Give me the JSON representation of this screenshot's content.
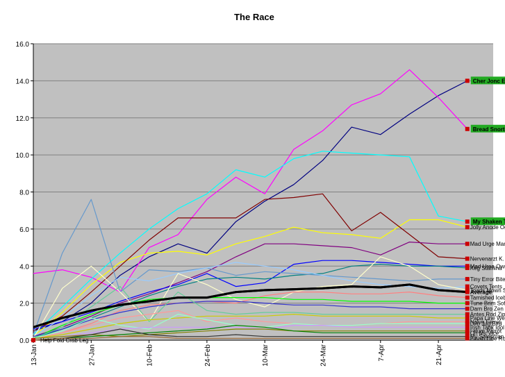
{
  "chart_data": {
    "type": "line",
    "title": "The Race",
    "xlabel": "",
    "ylabel": "",
    "ylim": [
      0,
      16
    ],
    "yticks": [
      "0.0",
      "2.0",
      "4.0",
      "6.0",
      "8.0",
      "10.0",
      "12.0",
      "14.0",
      "16.0"
    ],
    "xticks": [
      "13-Jan",
      "27-Jan",
      "10-Feb",
      "24-Feb",
      "10-Mar",
      "24-Mar",
      "7-Apr",
      "21-Apr"
    ],
    "x": [
      "13-Jan",
      "20-Jan",
      "27-Jan",
      "3-Feb",
      "10-Feb",
      "17-Feb",
      "24-Feb",
      "3-Mar",
      "10-Mar",
      "17-Mar",
      "24-Mar",
      "31-Mar",
      "7-Apr",
      "14-Apr",
      "21-Apr",
      "28-Apr"
    ],
    "grid": true,
    "background": "#c0c0c0",
    "series": [
      {
        "name": "Cher Jonc En",
        "color": "#000080",
        "highlight": true,
        "values": [
          0.5,
          1.0,
          2.0,
          3.5,
          4.5,
          5.2,
          4.7,
          6.4,
          7.5,
          8.4,
          9.7,
          11.5,
          11.1,
          12.2,
          13.2,
          14.0
        ]
      },
      {
        "name": "Bread Snorter",
        "color": "#ff00ff",
        "highlight": true,
        "values": [
          3.6,
          3.8,
          3.4,
          2.6,
          5.0,
          5.7,
          7.6,
          8.8,
          7.9,
          10.3,
          11.3,
          12.7,
          13.3,
          14.6,
          13.1,
          11.4
        ]
      },
      {
        "name": "My Shaken Ton",
        "color": "#00ffff",
        "highlight": true,
        "values": [
          0.3,
          1.8,
          3.3,
          4.7,
          6.0,
          7.1,
          7.9,
          9.2,
          8.8,
          9.8,
          10.2,
          10.1,
          10.0,
          9.9,
          6.7,
          6.4
        ]
      },
      {
        "name": "Jolly Anode Ogre",
        "color": "#ffff00",
        "values": [
          0.2,
          1.5,
          3.0,
          4.2,
          4.7,
          4.8,
          4.6,
          5.2,
          5.6,
          6.1,
          5.8,
          5.7,
          5.5,
          6.5,
          6.5,
          6.1
        ]
      },
      {
        "name": "Nervenarzt K. Sledge",
        "color": "#800000",
        "values": [
          0.5,
          1.3,
          2.6,
          4.0,
          5.4,
          6.6,
          6.6,
          6.6,
          7.6,
          7.7,
          7.9,
          5.9,
          6.9,
          5.7,
          4.5,
          4.4
        ]
      },
      {
        "name": "Mad Urge Maniac",
        "color": "#800080",
        "values": [
          0.2,
          0.7,
          1.3,
          2.0,
          2.5,
          3.1,
          3.7,
          4.5,
          5.2,
          5.2,
          5.1,
          5.0,
          4.6,
          5.3,
          5.2,
          5.2
        ]
      },
      {
        "name": "Mad Urea Owner",
        "color": "#0000ff",
        "values": [
          0.6,
          1.0,
          1.5,
          2.1,
          2.6,
          3.0,
          3.6,
          2.9,
          3.1,
          4.1,
          4.3,
          4.3,
          4.2,
          4.1,
          4.0,
          4.0
        ]
      },
      {
        "name": "Keg Stamina",
        "color": "#008080",
        "values": [
          0.1,
          0.6,
          1.2,
          1.8,
          2.4,
          2.9,
          3.3,
          3.4,
          3.3,
          3.5,
          3.6,
          4.0,
          4.1,
          4.0,
          4.0,
          3.9
        ]
      },
      {
        "name": "Tiny Error Bites",
        "color": "#6699cc",
        "values": [
          0.3,
          4.7,
          7.6,
          2.6,
          3.8,
          3.7,
          3.9,
          3.5,
          3.7,
          3.6,
          3.5,
          3.4,
          3.3,
          3.2,
          3.3,
          3.3
        ]
      },
      {
        "name": "Covets Tents",
        "color": "#99ccff",
        "values": [
          0.2,
          1.2,
          2.4,
          3.4,
          3.2,
          3.6,
          3.9,
          4.2,
          4.0,
          3.8,
          3.5,
          3.2,
          3.0,
          2.9,
          2.8,
          2.9
        ]
      },
      {
        "name": "Toads Mown Sat",
        "color": "#ffffcc",
        "values": [
          0.1,
          2.8,
          4.0,
          2.6,
          1.0,
          3.6,
          3.0,
          2.2,
          1.8,
          2.6,
          2.9,
          3.0,
          4.5,
          4.0,
          3.0,
          2.7
        ]
      },
      {
        "name": "Average",
        "color": "#000000",
        "bold": true,
        "values": [
          0.7,
          1.2,
          1.6,
          1.9,
          2.1,
          2.3,
          2.3,
          2.6,
          2.7,
          2.75,
          2.8,
          2.9,
          2.85,
          3.0,
          2.7,
          2.6
        ]
      },
      {
        "name": "Tarnished Iceberg",
        "color": "#ff8080",
        "values": [
          0.1,
          0.4,
          0.9,
          1.6,
          1.9,
          2.0,
          2.1,
          2.0,
          2.4,
          2.6,
          2.6,
          2.5,
          2.5,
          2.6,
          2.4,
          2.3
        ]
      },
      {
        "name": "Tune Brim Sofa",
        "color": "#00ff00",
        "values": [
          0.1,
          0.8,
          1.4,
          1.9,
          2.2,
          2.3,
          2.3,
          2.3,
          2.3,
          2.2,
          2.2,
          2.1,
          2.1,
          2.1,
          2.0,
          2.0
        ]
      },
      {
        "name": "Darn Bro Zen Rho",
        "color": "#3333cc",
        "values": [
          0.2,
          0.6,
          1.1,
          1.5,
          1.8,
          2.0,
          2.1,
          2.1,
          2.0,
          1.9,
          1.9,
          1.8,
          1.8,
          1.7,
          1.7,
          1.7
        ]
      },
      {
        "name": "Antes Rod Zipper",
        "color": "#66cc99",
        "values": [
          0.1,
          0.7,
          1.8,
          2.9,
          1.0,
          2.6,
          1.6,
          1.4,
          1.5,
          1.5,
          1.4,
          1.4,
          1.4,
          1.4,
          1.4,
          1.4
        ]
      },
      {
        "name": "Papa Line Wet Fish",
        "color": "#cccc00",
        "values": [
          0.1,
          0.3,
          0.6,
          0.9,
          1.1,
          1.2,
          1.3,
          1.3,
          1.3,
          1.4,
          1.3,
          1.3,
          1.3,
          1.3,
          1.2,
          1.2
        ]
      },
      {
        "name": "Naive Ferret",
        "color": "#ff9999",
        "values": [
          0.1,
          0.4,
          0.8,
          1.2,
          1.4,
          1.6,
          1.0,
          1.2,
          1.0,
          0.9,
          0.8,
          0.8,
          0.9,
          1.0,
          1.0,
          1.0
        ]
      },
      {
        "name": "Dim Jug Bird",
        "color": "#99ffcc",
        "values": [
          0.1,
          0.5,
          1.2,
          0.8,
          0.6,
          1.4,
          1.1,
          0.8,
          0.7,
          0.9,
          0.8,
          0.8,
          0.9,
          0.9,
          0.9,
          0.9
        ]
      },
      {
        "name": "Irish Tank Idol",
        "color": "#cc99ff",
        "values": [
          0.1,
          0.2,
          0.4,
          0.6,
          0.7,
          0.7,
          0.7,
          0.7,
          0.6,
          0.8,
          0.8,
          0.7,
          0.7,
          0.7,
          0.7,
          0.7
        ]
      },
      {
        "name": "I Hum Parrot",
        "color": "#808000",
        "values": [
          0.1,
          0.2,
          0.3,
          0.2,
          0.3,
          0.4,
          0.5,
          0.6,
          0.6,
          0.5,
          0.5,
          0.5,
          0.5,
          0.5,
          0.5,
          0.5
        ]
      },
      {
        "name": "Oh My Vice",
        "color": "#008000",
        "values": [
          0.0,
          0.1,
          0.2,
          0.3,
          0.4,
          0.5,
          0.6,
          0.8,
          0.7,
          0.5,
          0.4,
          0.4,
          0.4,
          0.4,
          0.4,
          0.4
        ]
      },
      {
        "name": "My Salesman",
        "color": "#333333",
        "values": [
          0.0,
          0.1,
          0.3,
          0.6,
          0.3,
          0.2,
          0.2,
          0.3,
          0.2,
          0.2,
          0.2,
          0.2,
          0.2,
          0.2,
          0.2,
          0.2
        ]
      },
      {
        "name": "Finish Line Rodent",
        "color": "#996633",
        "values": [
          0.0,
          0.1,
          0.1,
          0.2,
          0.2,
          0.1,
          0.1,
          0.1,
          0.1,
          0.1,
          0.1,
          0.1,
          0.1,
          0.1,
          0.1,
          0.1
        ]
      },
      {
        "name": "Help Fold Crab Leg",
        "color": "#ff0000",
        "values": [
          0.0,
          null,
          null,
          null,
          null,
          null,
          null,
          null,
          null,
          null,
          null,
          null,
          null,
          null,
          null,
          null
        ]
      }
    ]
  }
}
